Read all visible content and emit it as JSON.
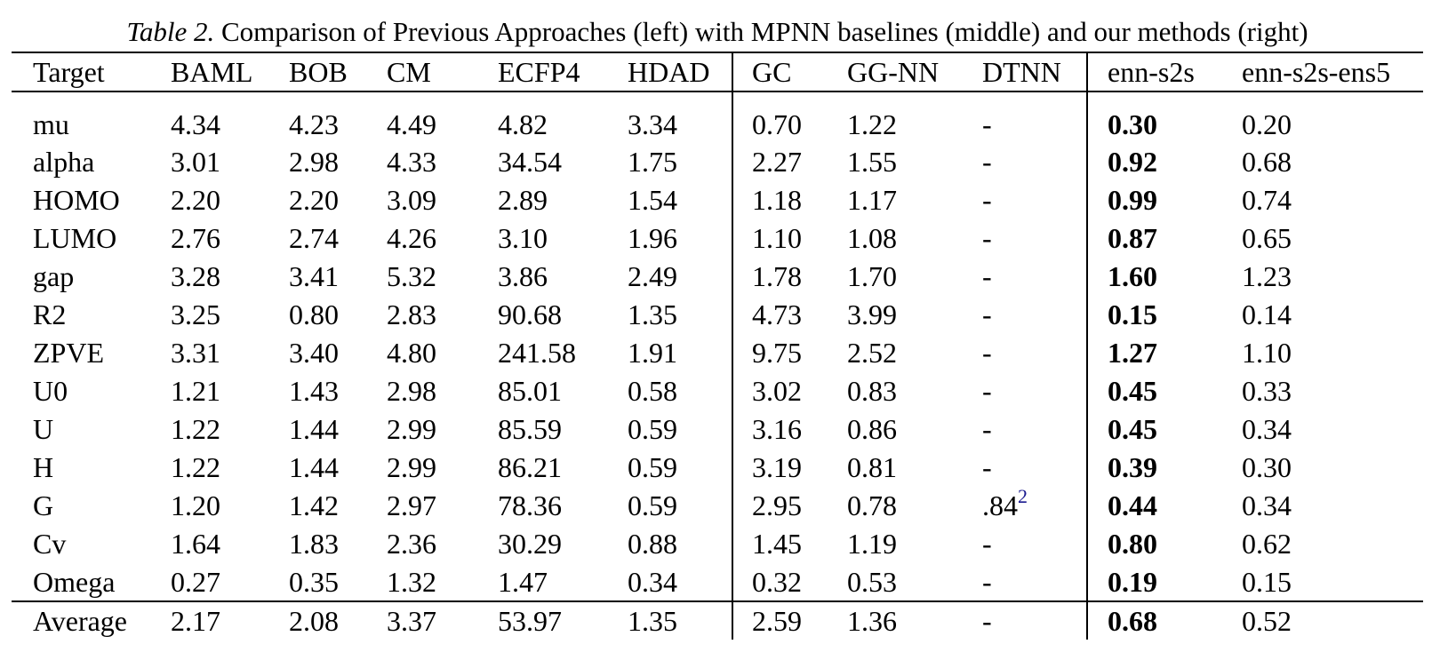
{
  "page": {
    "background_color": "#ffffff",
    "text_color": "#000000",
    "footnote_link_color": "#1a1a8f"
  },
  "caption": {
    "label": "Table 2.",
    "text": "Comparison of Previous Approaches (left) with MPNN baselines (middle) and our methods (right)"
  },
  "table": {
    "column_headers": [
      "Target",
      "BAML",
      "BOB",
      "CM",
      "ECFP4",
      "HDAD",
      "GC",
      "GG-NN",
      "DTNN",
      "enn-s2s",
      "enn-s2s-ens5"
    ],
    "bold_column": "enn-s2s",
    "rows": [
      {
        "target": "mu",
        "values": [
          "4.34",
          "4.23",
          "4.49",
          "4.82",
          "3.34",
          "0.70",
          "1.22",
          "-",
          "0.30",
          "0.20"
        ]
      },
      {
        "target": "alpha",
        "values": [
          "3.01",
          "2.98",
          "4.33",
          "34.54",
          "1.75",
          "2.27",
          "1.55",
          "-",
          "0.92",
          "0.68"
        ]
      },
      {
        "target": "HOMO",
        "values": [
          "2.20",
          "2.20",
          "3.09",
          "2.89",
          "1.54",
          "1.18",
          "1.17",
          "-",
          "0.99",
          "0.74"
        ]
      },
      {
        "target": "LUMO",
        "values": [
          "2.76",
          "2.74",
          "4.26",
          "3.10",
          "1.96",
          "1.10",
          "1.08",
          "-",
          "0.87",
          "0.65"
        ]
      },
      {
        "target": "gap",
        "values": [
          "3.28",
          "3.41",
          "5.32",
          "3.86",
          "2.49",
          "1.78",
          "1.70",
          "-",
          "1.60",
          "1.23"
        ]
      },
      {
        "target": "R2",
        "values": [
          "3.25",
          "0.80",
          "2.83",
          "90.68",
          "1.35",
          "4.73",
          "3.99",
          "-",
          "0.15",
          "0.14"
        ]
      },
      {
        "target": "ZPVE",
        "values": [
          "3.31",
          "3.40",
          "4.80",
          "241.58",
          "1.91",
          "9.75",
          "2.52",
          "-",
          "1.27",
          "1.10"
        ]
      },
      {
        "target": "U0",
        "values": [
          "1.21",
          "1.43",
          "2.98",
          "85.01",
          "0.58",
          "3.02",
          "0.83",
          "-",
          "0.45",
          "0.33"
        ]
      },
      {
        "target": "U",
        "values": [
          "1.22",
          "1.44",
          "2.99",
          "85.59",
          "0.59",
          "3.16",
          "0.86",
          "-",
          "0.45",
          "0.34"
        ]
      },
      {
        "target": "H",
        "values": [
          "1.22",
          "1.44",
          "2.99",
          "86.21",
          "0.59",
          "3.19",
          "0.81",
          "-",
          "0.39",
          "0.30"
        ]
      },
      {
        "target": "G",
        "values": [
          "1.20",
          "1.42",
          "2.97",
          "78.36",
          "0.59",
          "2.95",
          "0.78",
          {
            "base": ".84",
            "sup": "2"
          },
          "0.44",
          "0.34"
        ]
      },
      {
        "target": "Cv",
        "values": [
          "1.64",
          "1.83",
          "2.36",
          "30.29",
          "0.88",
          "1.45",
          "1.19",
          "-",
          "0.80",
          "0.62"
        ]
      },
      {
        "target": "Omega",
        "values": [
          "0.27",
          "0.35",
          "1.32",
          "1.47",
          "0.34",
          "0.32",
          "0.53",
          "-",
          "0.19",
          "0.15"
        ]
      }
    ],
    "average_row": {
      "target": "Average",
      "values": [
        "2.17",
        "2.08",
        "3.37",
        "53.97",
        "1.35",
        "2.59",
        "1.36",
        "-",
        "0.68",
        "0.52"
      ]
    }
  }
}
